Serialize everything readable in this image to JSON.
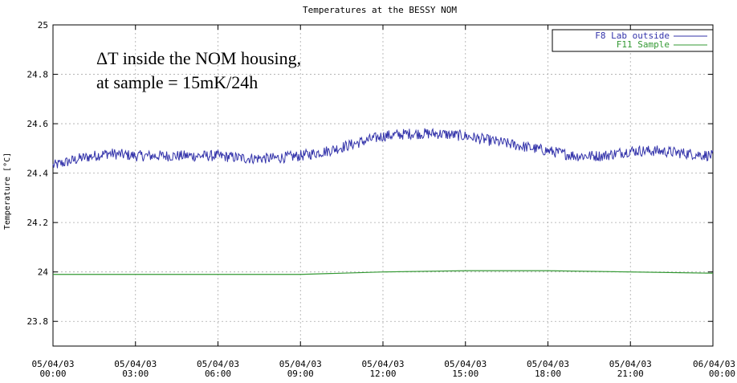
{
  "chart_data": {
    "type": "line",
    "title": "Temperatures at the BESSY NOM",
    "ylabel": "Temperature [°C]",
    "xlabel": "",
    "annotation": [
      "ΔT inside the NOM housing,",
      "at sample = 15mK/24h"
    ],
    "ylim": [
      23.7,
      25.0
    ],
    "xlim": [
      0,
      24
    ],
    "yticks": [
      23.8,
      24,
      24.2,
      24.4,
      24.6,
      24.8,
      25
    ],
    "ytick_labels": [
      "23.8",
      "24",
      "24.2",
      "24.4",
      "24.6",
      "24.8",
      "25"
    ],
    "xticks": [
      0,
      3,
      6,
      9,
      12,
      15,
      18,
      21,
      24
    ],
    "xtick_labels": [
      [
        "05/04/03",
        "00:00"
      ],
      [
        "05/04/03",
        "03:00"
      ],
      [
        "05/04/03",
        "06:00"
      ],
      [
        "05/04/03",
        "09:00"
      ],
      [
        "05/04/03",
        "12:00"
      ],
      [
        "05/04/03",
        "15:00"
      ],
      [
        "05/04/03",
        "18:00"
      ],
      [
        "05/04/03",
        "21:00"
      ],
      [
        "06/04/03",
        "00:00"
      ]
    ],
    "grid": true,
    "legend_position": "top-right",
    "series": [
      {
        "name": "F8 Lab outside",
        "color": "#3333aa",
        "x": [
          0,
          1,
          2,
          3,
          4,
          5,
          6,
          7,
          8,
          9,
          10,
          11,
          12,
          13,
          14,
          15,
          16,
          17,
          18,
          19,
          20,
          21,
          22,
          23,
          24
        ],
        "y": [
          24.43,
          24.46,
          24.48,
          24.47,
          24.47,
          24.47,
          24.47,
          24.46,
          24.46,
          24.47,
          24.49,
          24.52,
          24.55,
          24.56,
          24.56,
          24.55,
          24.53,
          24.51,
          24.49,
          24.47,
          24.47,
          24.49,
          24.49,
          24.48,
          24.47
        ]
      },
      {
        "name": "F11 Sample",
        "color": "#339933",
        "x": [
          0,
          3,
          6,
          9,
          12,
          15,
          18,
          21,
          24
        ],
        "y": [
          23.99,
          23.99,
          23.99,
          23.99,
          24.0,
          24.005,
          24.005,
          24.0,
          23.995
        ]
      }
    ]
  }
}
